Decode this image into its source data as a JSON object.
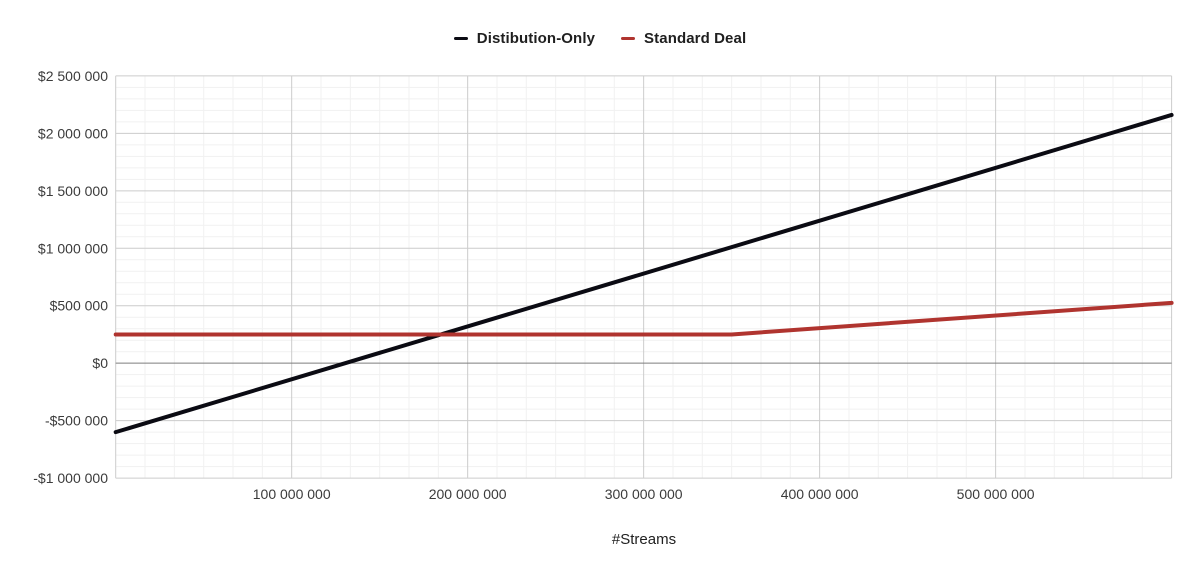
{
  "chart_data": {
    "type": "line",
    "title": "",
    "xlabel": "#Streams",
    "ylabel": "",
    "x_range": [
      0,
      600000000
    ],
    "y_range": [
      -1000000,
      2500000
    ],
    "grid": {
      "enabled": true,
      "major_color": "#cccccc",
      "minor_color": "#f1f1f1",
      "zero_line_color": "#7e7e7e",
      "x_minor_per_major": 6,
      "y_minor_per_major": 5
    },
    "legend_position": "top-center",
    "x_ticks": [
      {
        "value": 100000000,
        "label": "100 000 000"
      },
      {
        "value": 200000000,
        "label": "200 000 000"
      },
      {
        "value": 300000000,
        "label": "300 000 000"
      },
      {
        "value": 400000000,
        "label": "400 000 000"
      },
      {
        "value": 500000000,
        "label": "500 000 000"
      }
    ],
    "y_ticks": [
      {
        "value": 2500000,
        "label": "$2 500 000"
      },
      {
        "value": 2000000,
        "label": "$2 000 000"
      },
      {
        "value": 1500000,
        "label": "$1 500 000"
      },
      {
        "value": 1000000,
        "label": "$1 000 000"
      },
      {
        "value": 500000,
        "label": "$500 000"
      },
      {
        "value": 0,
        "label": "$0"
      },
      {
        "value": -500000,
        "label": "-$500 000"
      },
      {
        "value": -1000000,
        "label": "-$1 000 000"
      }
    ],
    "series": [
      {
        "name": "Distibution-Only",
        "color": "#0b0b13",
        "line_width": 4,
        "points": [
          [
            0,
            -600000
          ],
          [
            600000000,
            2160000
          ]
        ]
      },
      {
        "name": "Standard Deal",
        "color": "#b0342f",
        "line_width": 4,
        "points": [
          [
            0,
            250000
          ],
          [
            350000000,
            250000
          ],
          [
            600000000,
            525000
          ]
        ]
      }
    ]
  }
}
